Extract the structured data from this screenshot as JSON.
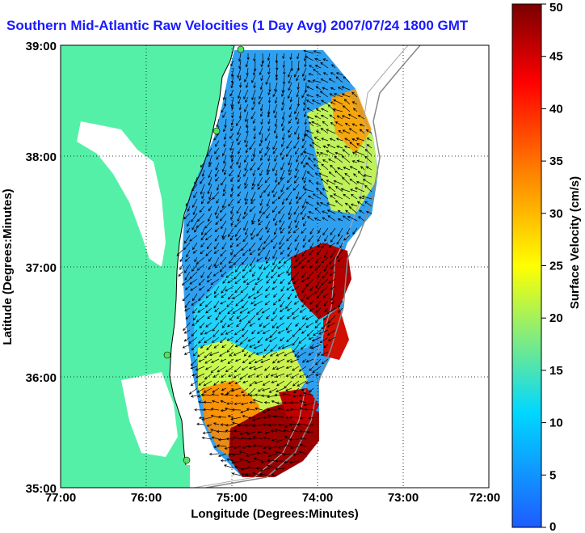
{
  "title": "Southern Mid-Atlantic Raw Velocities (1 Day Avg) 2007/07/24 1800 GMT",
  "x_axis": {
    "label": "Longitude (Degrees:Minutes)",
    "ticks": [
      "77:00",
      "76:00",
      "75:00",
      "74:00",
      "73:00",
      "72:00"
    ]
  },
  "y_axis": {
    "label": "Latitude (Degrees:Minutes)",
    "ticks": [
      "39:00",
      "38:00",
      "37:00",
      "36:00",
      "35:00"
    ]
  },
  "colorbar": {
    "label": "Surface Velocity (cm/s)",
    "ticks": [
      "50",
      "45",
      "40",
      "35",
      "30",
      "25",
      "20",
      "15",
      "10",
      "5",
      "0"
    ],
    "min": 0,
    "max": 50,
    "colors": [
      "#1e5bff",
      "#00d8ff",
      "#ffff00",
      "#ff8000",
      "#ff0000",
      "#7a0000"
    ]
  },
  "map": {
    "lon_range": [
      -77,
      -72
    ],
    "lat_range": [
      35,
      39
    ],
    "land_color": "#55f0a8",
    "grid": true
  }
}
